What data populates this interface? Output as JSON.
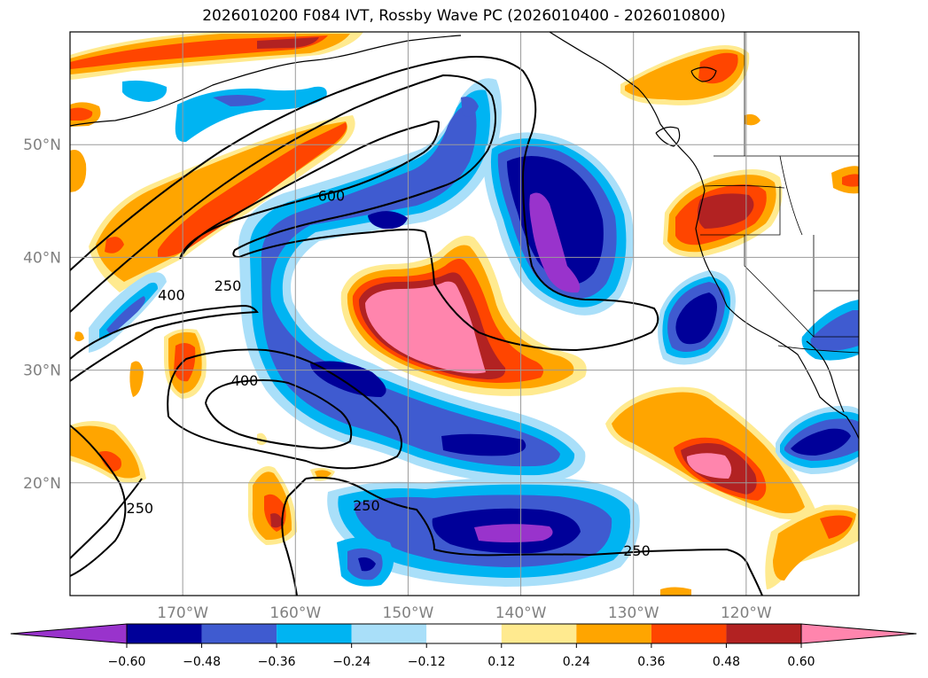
{
  "title": "2026010200 F084 IVT, Rossby Wave PC (2026010400 - 2026010800)",
  "map": {
    "lon_range": [
      -180,
      -110
    ],
    "lat_range": [
      10,
      60
    ],
    "lat_ticks": [
      {
        "value": 50,
        "label": "50°N"
      },
      {
        "value": 40,
        "label": "40°N"
      },
      {
        "value": 30,
        "label": "30°N"
      },
      {
        "value": 20,
        "label": "20°N"
      }
    ],
    "lon_ticks": [
      {
        "value": -170,
        "label": "170°W"
      },
      {
        "value": -160,
        "label": "160°W"
      },
      {
        "value": -150,
        "label": "150°W"
      },
      {
        "value": -140,
        "label": "140°W"
      },
      {
        "value": -130,
        "label": "130°W"
      },
      {
        "value": -120,
        "label": "120°W"
      }
    ],
    "grid": true,
    "ivt_contour_labels": [
      {
        "text": "600",
        "lon": -156.8,
        "lat": 45.5
      },
      {
        "text": "400",
        "lon": -171.0,
        "lat": 36.7
      },
      {
        "text": "250",
        "lon": -166.0,
        "lat": 37.5
      },
      {
        "text": "400",
        "lon": -164.5,
        "lat": 29.1
      },
      {
        "text": "250",
        "lon": -173.8,
        "lat": 17.8
      },
      {
        "text": "250",
        "lon": -153.7,
        "lat": 18.0
      },
      {
        "text": "250",
        "lon": -129.7,
        "lat": 14.0
      }
    ]
  },
  "colorbar": {
    "colors": [
      "#9933CC",
      "#000099",
      "#3F5BD0",
      "#00B4F2",
      "#A9DFF9",
      "#FFFFFF",
      "#FFEA8F",
      "#FFA500",
      "#FF4500",
      "#B22222",
      "#FF85AD",
      "#FF85AD"
    ],
    "ticks": [
      "−0.60",
      "−0.48",
      "−0.36",
      "−0.24",
      "−0.12",
      "0.12",
      "0.24",
      "0.36",
      "0.48",
      "0.60"
    ]
  },
  "colors": {
    "neg_strong": "#9933CC",
    "neg_2": "#000099",
    "neg_3": "#3F5BD0",
    "neg_4": "#00B4F2",
    "neg_5": "#A9DFF9",
    "pos_1": "#FFEA8F",
    "pos_2": "#FFA500",
    "pos_3": "#FF4500",
    "pos_4": "#B22222",
    "pos_strong": "#FF85AD"
  }
}
